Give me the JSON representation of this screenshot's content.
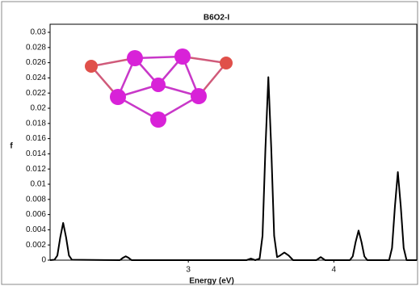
{
  "chart_data": {
    "type": "line",
    "title": "B6O2-I",
    "x_label": "Energy (eV)",
    "y_label": "f",
    "x": [
      2.05,
      2.08,
      2.1,
      2.12,
      2.14,
      2.16,
      2.18,
      2.2,
      2.53,
      2.55,
      2.57,
      2.59,
      2.61,
      3.4,
      3.43,
      3.46,
      3.49,
      3.51,
      3.53,
      3.55,
      3.57,
      3.59,
      3.61,
      3.63,
      3.66,
      3.69,
      3.72,
      3.88,
      3.91,
      3.94,
      4.11,
      4.13,
      4.15,
      4.17,
      4.19,
      4.21,
      4.23,
      4.38,
      4.4,
      4.42,
      4.44,
      4.46,
      4.48,
      4.5,
      4.57
    ],
    "values": [
      0,
      5e-05,
      0.0006,
      0.003,
      0.0049,
      0.003,
      0.0006,
      5e-05,
      0,
      0.0003,
      0.0005,
      0.0003,
      0,
      0,
      0.0002,
      0,
      0.0002,
      0.0032,
      0.0147,
      0.0241,
      0.0147,
      0.0032,
      0.0004,
      0.0006,
      0.001,
      0.0006,
      0,
      0,
      0.0004,
      0,
      0,
      0.0005,
      0.0024,
      0.0039,
      0.0024,
      0.0005,
      0,
      0,
      0.0016,
      0.0071,
      0.0116,
      0.0071,
      0.0016,
      0,
      0
    ],
    "color": "#000000",
    "xlim": [
      2.05,
      4.57
    ],
    "xticks": [
      3,
      4
    ],
    "ylim": [
      0,
      0.03
    ],
    "yticks": [
      0,
      0.002,
      0.004,
      0.006,
      0.008,
      0.01,
      0.012,
      0.014,
      0.016,
      0.018,
      0.02,
      0.022,
      0.024,
      0.026,
      0.028,
      0.03
    ],
    "grid": false
  }
}
